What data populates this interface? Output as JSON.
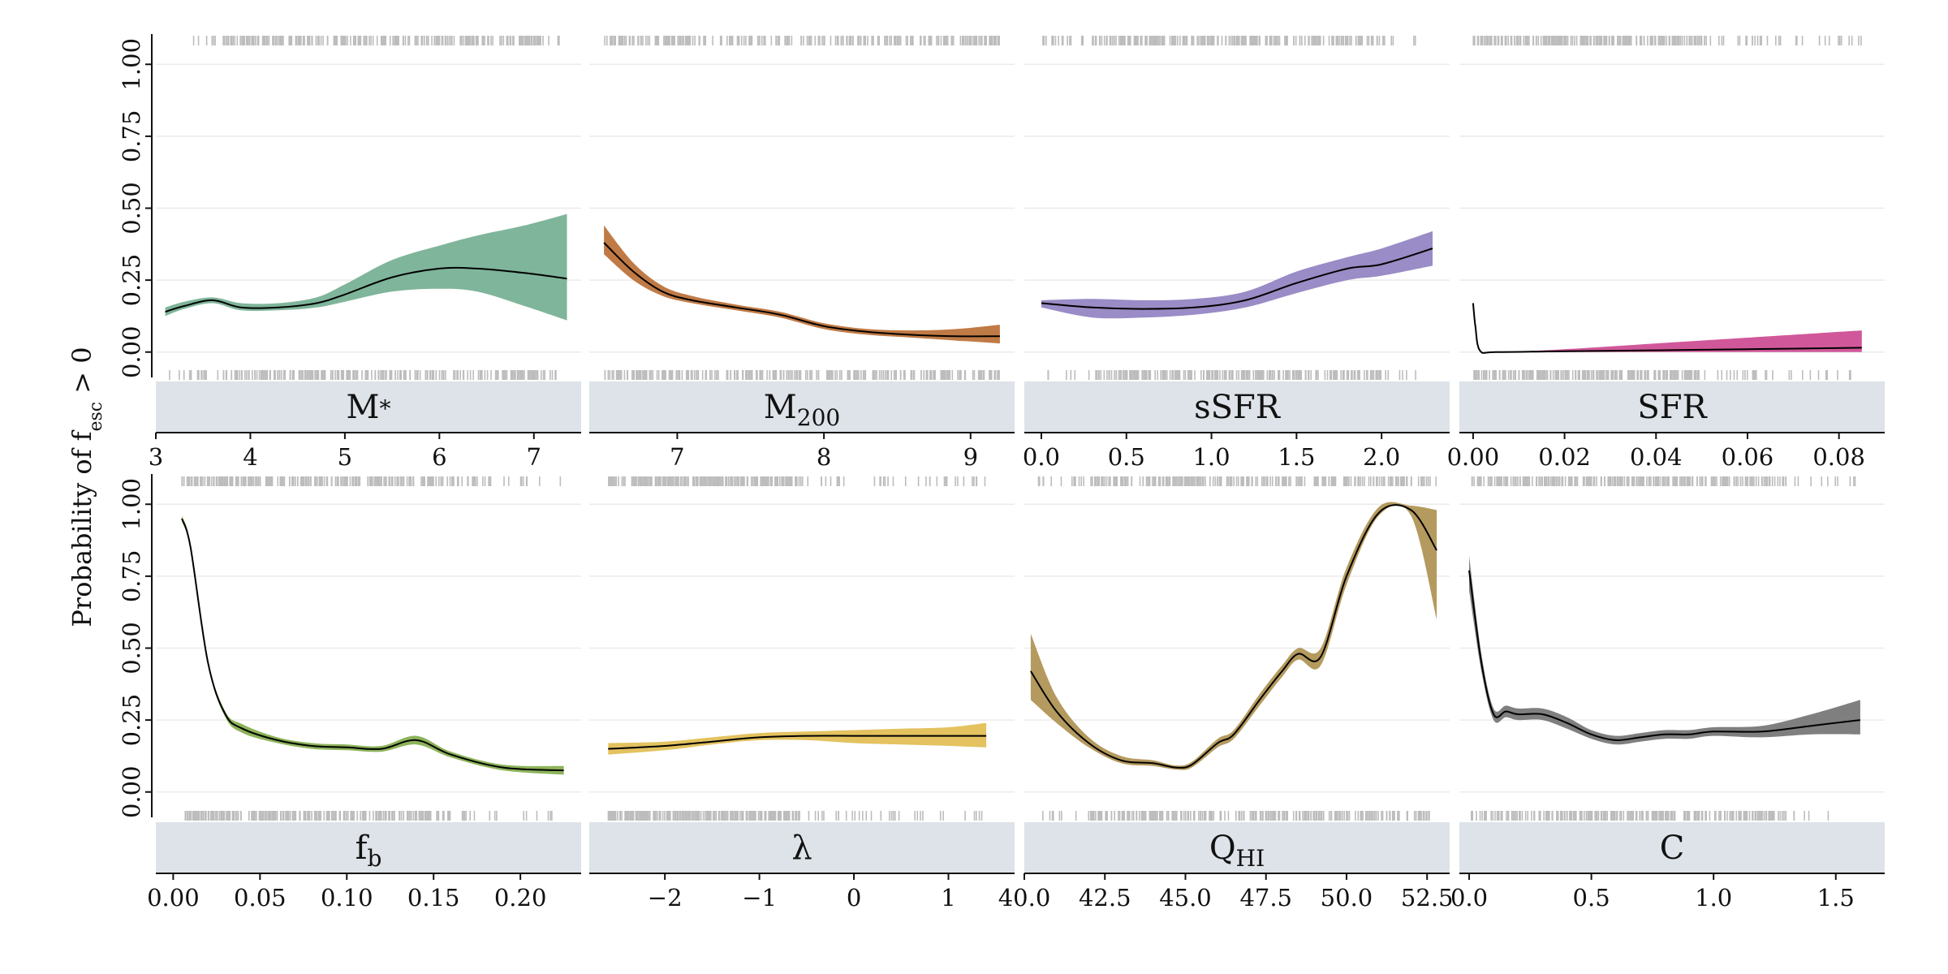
{
  "y_axis_label": {
    "prefix": "Probability of  f",
    "sub": "esc",
    "suffix": " > 0"
  },
  "colors": {
    "strip_background": "#dde3e8",
    "rug": "#bdbdbd",
    "grid": "#ebebeb",
    "axis": "#111111",
    "mean_line": "#000000"
  },
  "chart_data": [
    {
      "type": "area",
      "name": "M*",
      "strip": {
        "main": "M",
        "sub": "*",
        "sub_mode": "sub"
      },
      "color": "#7fb59a",
      "xlim": [
        3.0,
        7.5
      ],
      "ylim": [
        -0.06,
        1.06
      ],
      "xticks": [
        3,
        4,
        5,
        6,
        7
      ],
      "xtick_labels": [
        "3",
        "4",
        "5",
        "6",
        "7"
      ],
      "yticks": [
        0,
        0.25,
        0.5,
        0.75,
        1
      ],
      "ytick_labels": [
        "0.00",
        "0.25",
        "0.50",
        "0.75",
        "1.00"
      ],
      "rug_range": [
        3.1,
        7.35
      ],
      "rug_dense": [
        3.7,
        7.1
      ],
      "x": [
        3.1,
        3.3,
        3.6,
        3.9,
        4.3,
        4.7,
        5.0,
        5.5,
        6.0,
        6.4,
        6.9,
        7.35
      ],
      "mean": [
        0.14,
        0.16,
        0.18,
        0.155,
        0.155,
        0.17,
        0.2,
        0.26,
        0.29,
        0.29,
        0.275,
        0.255
      ],
      "lower": [
        0.125,
        0.15,
        0.17,
        0.145,
        0.145,
        0.155,
        0.175,
        0.21,
        0.22,
        0.21,
        0.16,
        0.11
      ],
      "upper": [
        0.155,
        0.175,
        0.19,
        0.17,
        0.17,
        0.19,
        0.235,
        0.32,
        0.37,
        0.405,
        0.44,
        0.48
      ]
    },
    {
      "type": "area",
      "name": "M200",
      "strip": {
        "main": "M",
        "sub": "200",
        "sub_mode": "sub"
      },
      "color": "#c07a45",
      "xlim": [
        6.4,
        9.3
      ],
      "ylim": [
        -0.06,
        1.06
      ],
      "xticks": [
        7,
        8,
        9
      ],
      "xtick_labels": [
        "7",
        "8",
        "9"
      ],
      "yticks": [
        0,
        0.25,
        0.5,
        0.75,
        1
      ],
      "ytick_labels": [
        "0.00",
        "0.25",
        "0.50",
        "0.75",
        "1.00"
      ],
      "rug_range": [
        6.5,
        9.2
      ],
      "rug_dense": [
        6.5,
        9.2
      ],
      "x": [
        6.5,
        6.7,
        6.9,
        7.1,
        7.4,
        7.7,
        8.0,
        8.3,
        8.6,
        8.9,
        9.2
      ],
      "mean": [
        0.38,
        0.28,
        0.21,
        0.18,
        0.155,
        0.13,
        0.09,
        0.07,
        0.06,
        0.055,
        0.055
      ],
      "lower": [
        0.34,
        0.25,
        0.195,
        0.17,
        0.145,
        0.12,
        0.08,
        0.06,
        0.05,
        0.04,
        0.03
      ],
      "upper": [
        0.44,
        0.31,
        0.23,
        0.195,
        0.165,
        0.14,
        0.1,
        0.08,
        0.075,
        0.08,
        0.095
      ]
    },
    {
      "type": "area",
      "name": "sSFR",
      "strip": {
        "main": "sSFR",
        "sub": "",
        "sub_mode": "sub"
      },
      "color": "#9a8cc6",
      "xlim": [
        -0.1,
        2.4
      ],
      "ylim": [
        -0.06,
        1.06
      ],
      "xticks": [
        0,
        0.5,
        1,
        1.5,
        2
      ],
      "xtick_labels": [
        "0.0",
        "0.5",
        "1.0",
        "1.5",
        "2.0"
      ],
      "rug_range": [
        0.0,
        2.2
      ],
      "rug_dense": [
        0.3,
        2.0
      ],
      "yticks": [
        0,
        0.25,
        0.5,
        0.75,
        1
      ],
      "ytick_labels": [
        "0.00",
        "0.25",
        "0.50",
        "0.75",
        "1.00"
      ],
      "x": [
        0.0,
        0.3,
        0.6,
        0.9,
        1.2,
        1.5,
        1.8,
        2.0,
        2.3
      ],
      "mean": [
        0.17,
        0.155,
        0.15,
        0.155,
        0.18,
        0.24,
        0.29,
        0.305,
        0.36
      ],
      "lower": [
        0.155,
        0.12,
        0.12,
        0.13,
        0.155,
        0.205,
        0.25,
        0.265,
        0.3
      ],
      "upper": [
        0.18,
        0.185,
        0.18,
        0.185,
        0.21,
        0.28,
        0.33,
        0.36,
        0.42
      ]
    },
    {
      "type": "area",
      "name": "SFR",
      "strip": {
        "main": "SFR",
        "sub": "",
        "sub_mode": "sub"
      },
      "color": "#d0589a",
      "xlim": [
        -0.003,
        0.09
      ],
      "ylim": [
        -0.06,
        1.06
      ],
      "xticks": [
        0,
        0.02,
        0.04,
        0.06,
        0.08
      ],
      "xtick_labels": [
        "0.00",
        "0.02",
        "0.04",
        "0.06",
        "0.08"
      ],
      "yticks": [
        0,
        0.25,
        0.5,
        0.75,
        1
      ],
      "ytick_labels": [
        "0.00",
        "0.25",
        "0.50",
        "0.75",
        "1.00"
      ],
      "rug_range": [
        0.0,
        0.085
      ],
      "rug_dense": [
        0.0,
        0.05
      ],
      "x": [
        0.0,
        0.0005,
        0.0015,
        0.005,
        0.02,
        0.04,
        0.06,
        0.085
      ],
      "mean": [
        0.17,
        0.09,
        0.005,
        0.0,
        0.003,
        0.006,
        0.01,
        0.015
      ],
      "lower": [
        0.165,
        0.085,
        0.002,
        0.0,
        0.0,
        0.0,
        0.0,
        0.0
      ],
      "upper": [
        0.175,
        0.095,
        0.008,
        0.0,
        0.01,
        0.03,
        0.05,
        0.075
      ]
    },
    {
      "type": "area",
      "name": "fb",
      "strip": {
        "main": "f",
        "sub": "b",
        "sub_mode": "sub"
      },
      "color": "#8cb35a",
      "xlim": [
        -0.01,
        0.235
      ],
      "ylim": [
        -0.06,
        1.06
      ],
      "xticks": [
        0,
        0.05,
        0.1,
        0.15,
        0.2
      ],
      "xtick_labels": [
        "0.00",
        "0.05",
        "0.10",
        "0.15",
        "0.20"
      ],
      "yticks": [
        0,
        0.25,
        0.5,
        0.75,
        1
      ],
      "ytick_labels": [
        "0.00",
        "0.25",
        "0.50",
        "0.75",
        "1.00"
      ],
      "rug_range": [
        0.005,
        0.225
      ],
      "rug_dense": [
        0.005,
        0.16
      ],
      "x": [
        0.005,
        0.01,
        0.02,
        0.03,
        0.04,
        0.06,
        0.08,
        0.1,
        0.12,
        0.14,
        0.16,
        0.19,
        0.225
      ],
      "mean": [
        0.95,
        0.85,
        0.45,
        0.27,
        0.22,
        0.18,
        0.16,
        0.155,
        0.15,
        0.18,
        0.13,
        0.085,
        0.075
      ],
      "lower": [
        0.94,
        0.84,
        0.44,
        0.26,
        0.205,
        0.17,
        0.15,
        0.145,
        0.14,
        0.165,
        0.12,
        0.075,
        0.06
      ],
      "upper": [
        0.96,
        0.86,
        0.46,
        0.28,
        0.235,
        0.19,
        0.17,
        0.165,
        0.16,
        0.195,
        0.14,
        0.095,
        0.09
      ]
    },
    {
      "type": "area",
      "name": "lambda",
      "strip": {
        "main": "λ",
        "sub": "",
        "sub_mode": "sub"
      },
      "color": "#e3c25f",
      "xlim": [
        -2.8,
        1.7
      ],
      "ylim": [
        -0.06,
        1.06
      ],
      "xticks": [
        -2,
        -1,
        0,
        1
      ],
      "xtick_labels": [
        "−2",
        "−1",
        "0",
        "1"
      ],
      "yticks": [
        0,
        0.25,
        0.5,
        0.75,
        1
      ],
      "ytick_labels": [
        "0.00",
        "0.25",
        "0.50",
        "0.75",
        "1.00"
      ],
      "rug_range": [
        -2.6,
        1.4
      ],
      "rug_dense": [
        -2.6,
        -0.6
      ],
      "x": [
        -2.6,
        -2.0,
        -1.5,
        -1.0,
        -0.5,
        0.0,
        0.5,
        1.0,
        1.4
      ],
      "mean": [
        0.15,
        0.16,
        0.175,
        0.19,
        0.195,
        0.195,
        0.195,
        0.195,
        0.195
      ],
      "lower": [
        0.13,
        0.145,
        0.165,
        0.18,
        0.18,
        0.17,
        0.165,
        0.16,
        0.155
      ],
      "upper": [
        0.17,
        0.175,
        0.19,
        0.205,
        0.21,
        0.215,
        0.22,
        0.225,
        0.24
      ]
    },
    {
      "type": "area",
      "name": "QHI",
      "strip": {
        "main": "Q",
        "sub": "HI",
        "sub_mode": "sub"
      },
      "color": "#b49a5e",
      "xlim": [
        40.0,
        53.2
      ],
      "ylim": [
        -0.06,
        1.06
      ],
      "xticks": [
        40,
        42.5,
        45,
        47.5,
        50,
        52.5
      ],
      "xtick_labels": [
        "40.0",
        "42.5",
        "45.0",
        "47.5",
        "50.0",
        "52.5"
      ],
      "yticks": [
        0,
        0.25,
        0.5,
        0.75,
        1
      ],
      "ytick_labels": [
        "0.00",
        "0.25",
        "0.50",
        "0.75",
        "1.00"
      ],
      "rug_range": [
        40.2,
        52.8
      ],
      "rug_dense": [
        42.0,
        52.6
      ],
      "x": [
        40.2,
        41.0,
        42.0,
        43.0,
        44.0,
        44.7,
        45.2,
        46.0,
        46.5,
        47.3,
        48.0,
        48.5,
        49.2,
        50.0,
        51.0,
        52.0,
        52.8
      ],
      "mean": [
        0.42,
        0.28,
        0.17,
        0.11,
        0.1,
        0.085,
        0.095,
        0.17,
        0.2,
        0.32,
        0.42,
        0.48,
        0.47,
        0.75,
        0.97,
        0.98,
        0.84
      ],
      "lower": [
        0.32,
        0.24,
        0.155,
        0.1,
        0.09,
        0.078,
        0.085,
        0.155,
        0.185,
        0.3,
        0.4,
        0.46,
        0.44,
        0.72,
        0.96,
        0.96,
        0.6
      ],
      "upper": [
        0.55,
        0.33,
        0.19,
        0.125,
        0.11,
        0.092,
        0.105,
        0.185,
        0.215,
        0.34,
        0.44,
        0.5,
        0.5,
        0.78,
        0.99,
        0.995,
        0.98
      ]
    },
    {
      "type": "area",
      "name": "C",
      "strip": {
        "main": "C",
        "sub": "",
        "sub_mode": "sub"
      },
      "color": "#7f7f7f",
      "xlim": [
        -0.04,
        1.7
      ],
      "ylim": [
        -0.06,
        1.06
      ],
      "xticks": [
        0,
        0.5,
        1,
        1.5
      ],
      "xtick_labels": [
        "0.0",
        "0.5",
        "1.0",
        "1.5"
      ],
      "yticks": [
        0,
        0.25,
        0.5,
        0.75,
        1
      ],
      "ytick_labels": [
        "0.00",
        "0.25",
        "0.50",
        "0.75",
        "1.00"
      ],
      "rug_range": [
        0.0,
        1.6
      ],
      "rug_dense": [
        0.0,
        1.3
      ],
      "x": [
        0.0,
        0.05,
        0.1,
        0.15,
        0.2,
        0.3,
        0.4,
        0.5,
        0.6,
        0.7,
        0.8,
        0.9,
        1.0,
        1.2,
        1.4,
        1.6
      ],
      "mean": [
        0.77,
        0.45,
        0.27,
        0.28,
        0.27,
        0.27,
        0.24,
        0.2,
        0.18,
        0.19,
        0.2,
        0.2,
        0.21,
        0.21,
        0.23,
        0.25
      ],
      "lower": [
        0.7,
        0.42,
        0.25,
        0.26,
        0.25,
        0.25,
        0.22,
        0.185,
        0.165,
        0.175,
        0.185,
        0.185,
        0.195,
        0.19,
        0.2,
        0.2
      ],
      "upper": [
        0.82,
        0.48,
        0.29,
        0.3,
        0.29,
        0.29,
        0.26,
        0.215,
        0.195,
        0.205,
        0.215,
        0.215,
        0.225,
        0.23,
        0.27,
        0.32
      ]
    }
  ]
}
